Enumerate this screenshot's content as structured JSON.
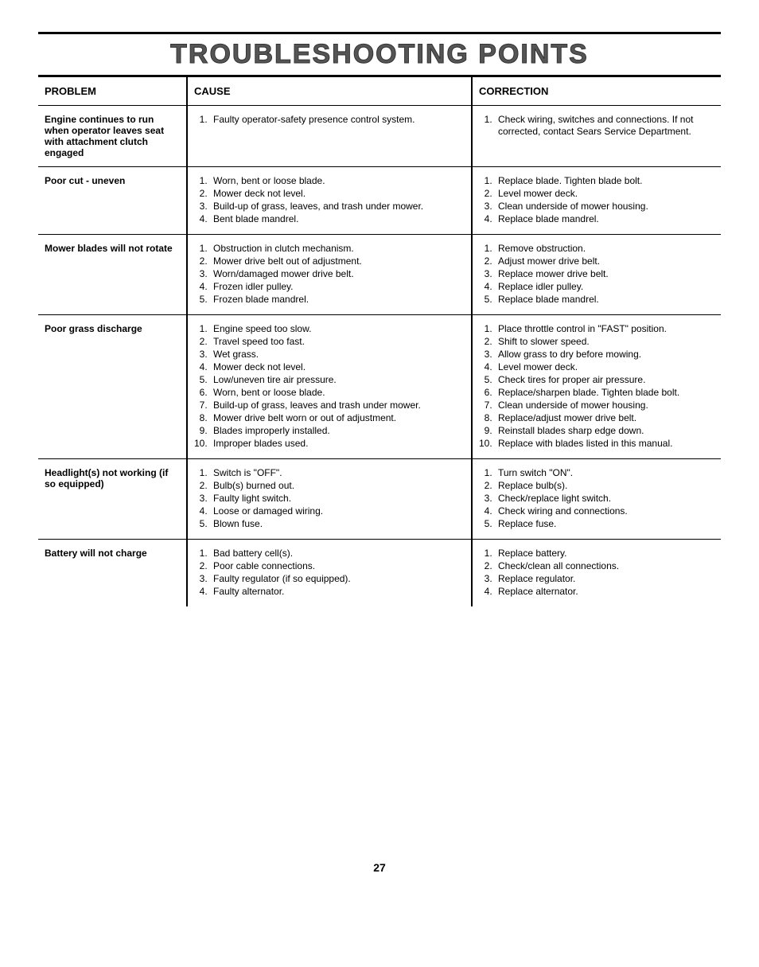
{
  "title": "TROUBLESHOOTING POINTS",
  "page_number": "27",
  "columns": {
    "problem": "PROBLEM",
    "cause": "CAUSE",
    "correction": "CORRECTION"
  },
  "rows": [
    {
      "problem": "Engine continues to run when operator leaves seat with attachment clutch engaged",
      "causes": [
        "Faulty operator-safety presence control system."
      ],
      "corrections": [
        "Check wiring, switches and connections. If not corrected, contact Sears Service Department."
      ]
    },
    {
      "problem": "Poor cut - uneven",
      "causes": [
        "Worn, bent or loose blade.",
        "Mower deck not level.",
        "Build-up of grass, leaves, and trash under mower.",
        "Bent blade mandrel."
      ],
      "corrections": [
        "Replace blade. Tighten blade bolt.",
        "Level mower deck.",
        "Clean underside of mower housing.",
        "Replace blade mandrel."
      ]
    },
    {
      "problem": "Mower blades will not rotate",
      "causes": [
        "Obstruction in clutch mechanism.",
        "Mower drive belt out of adjustment.",
        "Worn/damaged mower drive belt.",
        "Frozen idler pulley.",
        "Frozen blade mandrel."
      ],
      "corrections": [
        "Remove obstruction.",
        "Adjust mower drive belt.",
        "Replace mower drive belt.",
        "Replace idler pulley.",
        "Replace blade mandrel."
      ]
    },
    {
      "problem": "Poor grass discharge",
      "causes": [
        "Engine speed too slow.",
        "Travel speed too fast.",
        "Wet grass.",
        "Mower deck not level.",
        "Low/uneven tire air pressure.",
        "Worn, bent or loose blade.",
        "Build-up of grass, leaves and trash under mower.",
        "Mower drive belt worn or out of adjustment.",
        "Blades improperly installed.",
        "Improper blades used."
      ],
      "corrections": [
        "Place throttle control in \"FAST\" position.",
        "Shift to slower speed.",
        "Allow grass to dry before mowing.",
        "Level mower deck.",
        "Check tires for proper air pressure.",
        "Replace/sharpen blade. Tighten blade bolt.",
        "Clean underside of mower housing.",
        "Replace/adjust mower drive belt.",
        "Reinstall blades sharp edge down.",
        "Replace with blades listed in this manual."
      ]
    },
    {
      "problem": "Headlight(s) not working (if so equipped)",
      "causes": [
        "Switch is \"OFF\".",
        "Bulb(s) burned out.",
        "Faulty light switch.",
        "Loose or damaged wiring.",
        "Blown fuse."
      ],
      "corrections": [
        "Turn switch \"ON\".",
        "Replace bulb(s).",
        "Check/replace light switch.",
        "Check wiring and connections.",
        "Replace fuse."
      ]
    },
    {
      "problem": "Battery will not charge",
      "causes": [
        "Bad battery cell(s).",
        "Poor cable connections.",
        "Faulty regulator (if so equipped).",
        "Faulty alternator."
      ],
      "corrections": [
        "Replace battery.",
        "Check/clean all connections.",
        "Replace regulator.",
        "Replace alternator."
      ]
    }
  ]
}
